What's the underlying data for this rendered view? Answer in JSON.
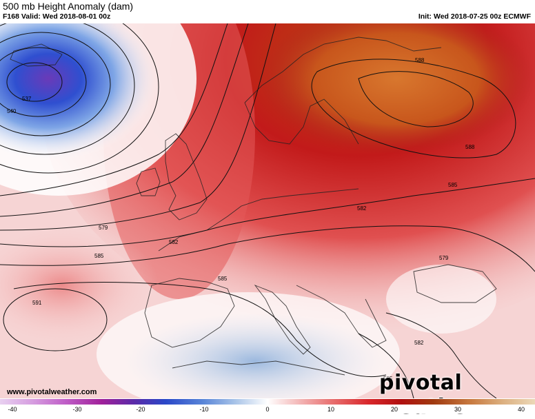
{
  "header": {
    "title": "500 mb Height Anomaly (dam)",
    "valid": "F168 Valid: Wed 2018-08-01 00z",
    "init": "Init: Wed 2018-07-25 00z ECMWF"
  },
  "footer": {
    "url": "www.pivotalweather.com",
    "brand": "pivotal weather"
  },
  "contour_labels": [
    "537",
    "540",
    "579",
    "582",
    "585",
    "591",
    "588",
    "588",
    "585",
    "582",
    "585",
    "579",
    "582",
    "585"
  ],
  "colorbar": {
    "ticks": [
      "-40",
      "-30",
      "-20",
      "-10",
      "0",
      "10",
      "20",
      "30",
      "40"
    ],
    "min": -40,
    "max": 40,
    "colors": {
      "strong_negative": "#7b3fc2",
      "negative": "#2f4fd0",
      "weak_negative": "#a9c4e8",
      "neutral": "#ffffff",
      "weak_positive": "#f3b6b6",
      "positive": "#d8262a",
      "strong_positive": "#c85a1e"
    }
  }
}
